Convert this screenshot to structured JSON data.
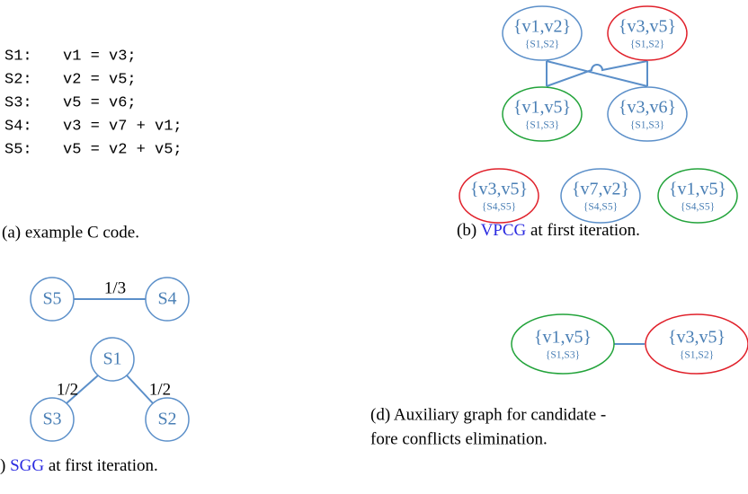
{
  "code": [
    {
      "label": "S1:",
      "stmt": "v1 = v3;"
    },
    {
      "label": "S2:",
      "stmt": "v2 = v5;"
    },
    {
      "label": "S3:",
      "stmt": "v5 = v6;"
    },
    {
      "label": "S4:",
      "stmt": "v3 = v7 + v1;"
    },
    {
      "label": "S5:",
      "stmt": "v5 = v2 + v5;"
    }
  ],
  "caption_a": "(a) example C code.",
  "sgg": {
    "nodes": [
      {
        "label": "S5"
      },
      {
        "label": "S4"
      },
      {
        "label": "S1"
      },
      {
        "label": "S3"
      },
      {
        "label": "S2"
      }
    ],
    "edges": [
      {
        "label": "1/3"
      },
      {
        "label": "1/2"
      },
      {
        "label": "1/2"
      }
    ],
    "caption": {
      "pre": ") ",
      "link": "SGG",
      "post": " at first iteration."
    }
  },
  "vpcg": {
    "nodes": [
      {
        "label": "{v1,v2}",
        "sub": "{S1,S2}",
        "color": "#5b8fc9"
      },
      {
        "label": "{v3,v5}",
        "sub": "{S1,S2}",
        "color": "#e0202a"
      },
      {
        "label": "{v1,v5}",
        "sub": "{S1,S3}",
        "color": "#22a33a"
      },
      {
        "label": "{v3,v6}",
        "sub": "{S1,S3}",
        "color": "#5b8fc9"
      },
      {
        "label": "{v3,v5}",
        "sub": "{S4,S5}",
        "color": "#e0202a"
      },
      {
        "label": "{v7,v2}",
        "sub": "{S4,S5}",
        "color": "#5b8fc9"
      },
      {
        "label": "{v1,v5}",
        "sub": "{S4,S5}",
        "color": "#22a33a"
      }
    ],
    "caption": {
      "pre": "(b) ",
      "link": "VPCG",
      "post": " at first iteration."
    }
  },
  "aux": {
    "nodes": [
      {
        "label": "{v1,v5}",
        "sub": "{S1,S3}",
        "color": "#22a33a"
      },
      {
        "label": "{v3,v5}",
        "sub": "{S1,S2}",
        "color": "#e0202a"
      }
    ],
    "caption": [
      "(d) Auxiliary graph for candidate -",
      "fore conflicts elimination."
    ]
  }
}
